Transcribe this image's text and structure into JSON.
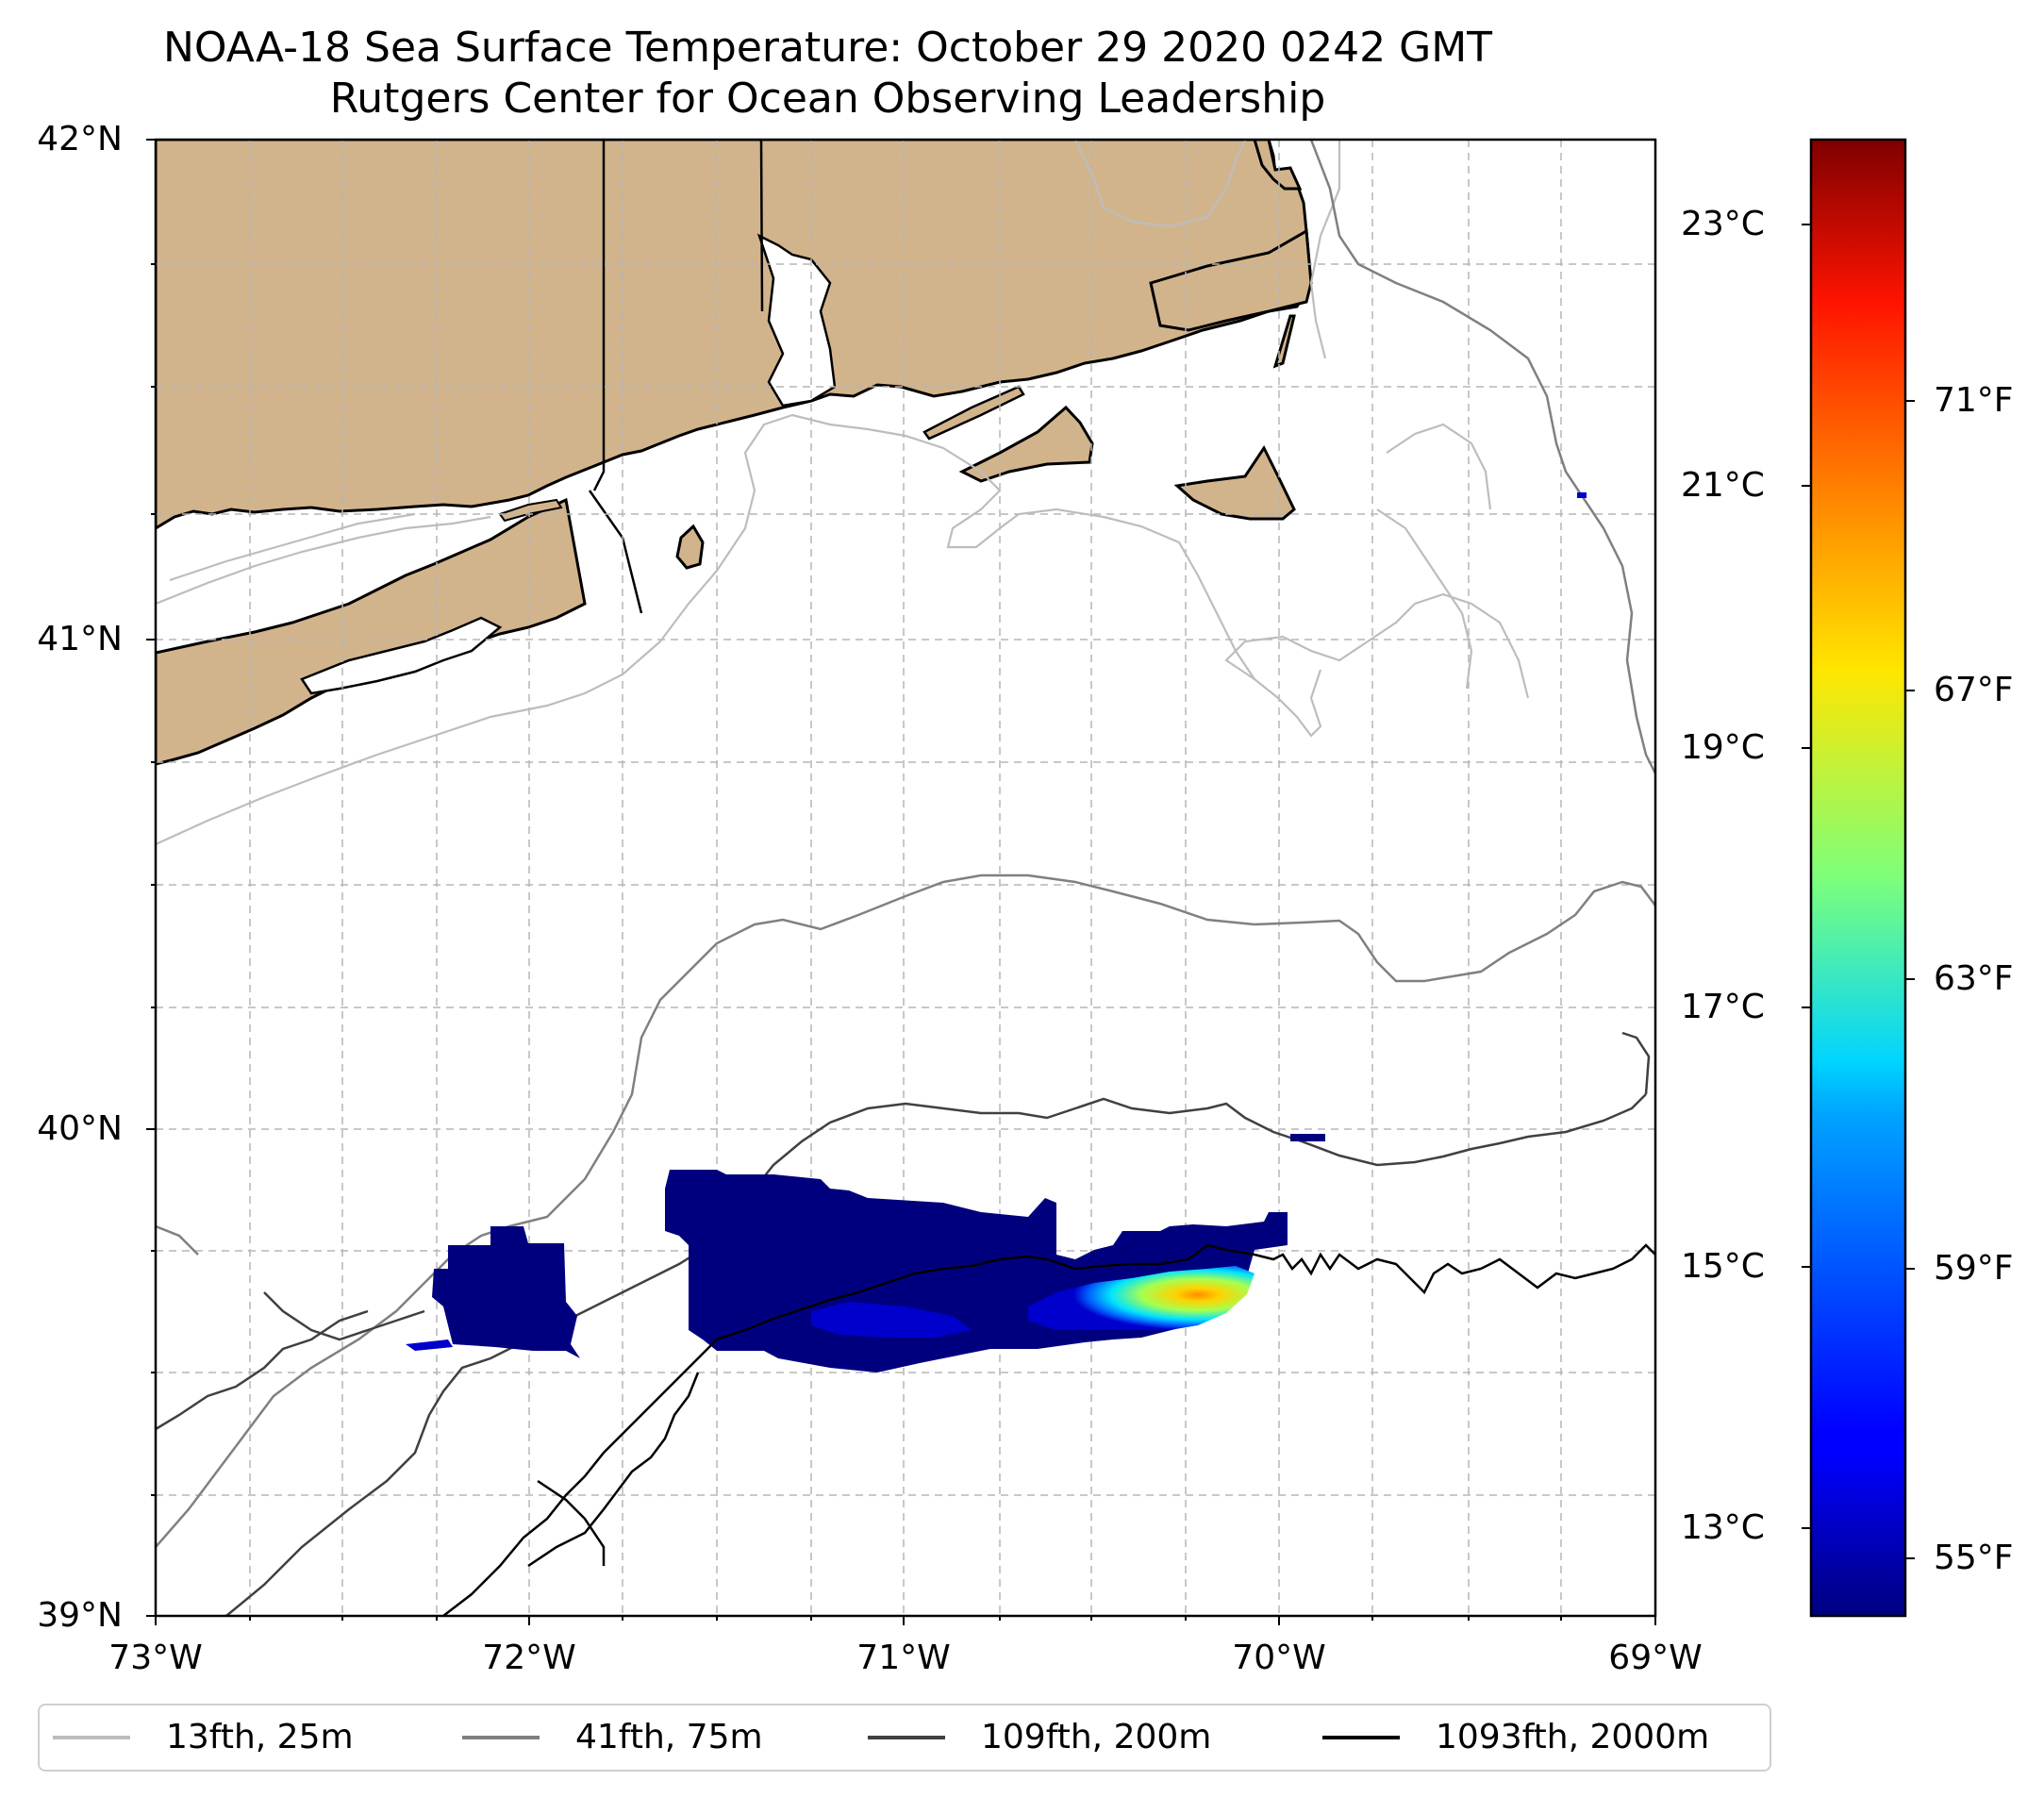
{
  "title": {
    "line1": "NOAA-18 Sea Surface Temperature: October 29 2020 0242 GMT",
    "line2": "Rutgers Center for Ocean Observing Leadership"
  },
  "map": {
    "lat_range": [
      39,
      42
    ],
    "lon_range": [
      -73,
      -69
    ],
    "lat_labels": [
      "42°N",
      "41°N",
      "40°N",
      "39°N"
    ],
    "lon_labels": [
      "73°W",
      "72°W",
      "71°W",
      "70°W",
      "69°W"
    ],
    "land_color": "#d2b48c",
    "gridlines": "dashed"
  },
  "colorbar": {
    "colormap": "jet",
    "celsius_labels": [
      "23°C",
      "21°C",
      "19°C",
      "17°C",
      "15°C",
      "13°C"
    ],
    "fahrenheit_labels": [
      "71°F",
      "67°F",
      "63°F",
      "59°F",
      "55°F"
    ]
  },
  "legend": {
    "items": [
      {
        "label": "13fth, 25m",
        "color": "#bdbdbd"
      },
      {
        "label": "41fth, 75m",
        "color": "#808080"
      },
      {
        "label": "109fth, 200m",
        "color": "#404040"
      },
      {
        "label": "1093fth, 2000m",
        "color": "#000000"
      }
    ]
  }
}
